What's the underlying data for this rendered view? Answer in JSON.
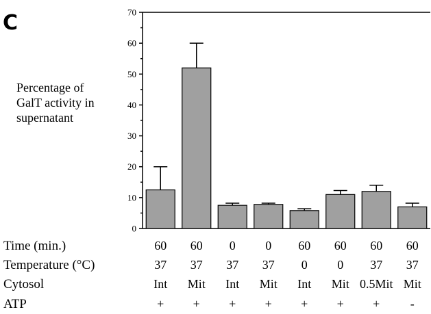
{
  "panel_letter": "C",
  "chart_data": {
    "type": "bar",
    "ylabel": [
      "Percentage of",
      "GalT activity in",
      "supernatant"
    ],
    "ylim": [
      0,
      70
    ],
    "yticks": [
      0,
      10,
      20,
      30,
      40,
      50,
      60,
      70
    ],
    "values": [
      12.5,
      52,
      7.5,
      7.8,
      5.8,
      11,
      12,
      7
    ],
    "errors": [
      7.5,
      8,
      0.7,
      0.4,
      0.6,
      1.3,
      2,
      1.2
    ],
    "bar_color": "#a0a0a0",
    "conditions": [
      {
        "label": "Time (min.)",
        "values": [
          "60",
          "60",
          "0",
          "0",
          "60",
          "60",
          "60",
          "60"
        ]
      },
      {
        "label": "Temperature (°C)",
        "values": [
          "37",
          "37",
          "37",
          "37",
          "0",
          "0",
          "37",
          "37"
        ]
      },
      {
        "label": "Cytosol",
        "values": [
          "Int",
          "Mit",
          "Int",
          "Mit",
          "Int",
          "Mit",
          "0.5Mit",
          "Mit"
        ]
      },
      {
        "label": "ATP",
        "values": [
          "+",
          "+",
          "+",
          "+",
          "+",
          "+",
          "+",
          "-"
        ]
      }
    ]
  }
}
